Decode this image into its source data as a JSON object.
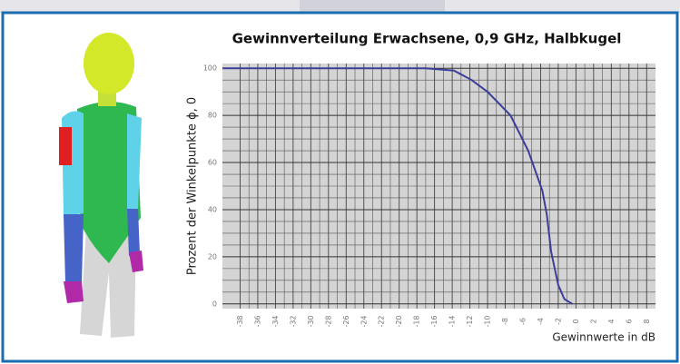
{
  "chart_data": {
    "type": "line",
    "title": "Gewinnverteilung Erwachsene, 0,9 GHz, Halbkugel",
    "xlabel": "Gewinnwerte in dB",
    "ylabel": "Prozent der Winkelpunkte ϕ, 0",
    "x": [
      -40,
      -30,
      -20,
      -17,
      -13.8,
      -11.8,
      -10,
      -7.4,
      -5.4,
      -3.8,
      -3.3,
      -2.8,
      -2,
      -1.3,
      -0.4
    ],
    "values": [
      100,
      100,
      100,
      100,
      99,
      95,
      90,
      80,
      65,
      48,
      38,
      22,
      8,
      2,
      0
    ],
    "color": "#3b3f9a",
    "xlim": [
      -40,
      9
    ],
    "ylim": [
      -2,
      102
    ],
    "xticks": [
      -38,
      -36,
      -34,
      -32,
      -30,
      -28,
      -26,
      -24,
      -22,
      -20,
      -18,
      -16,
      -14,
      -12,
      -10,
      -8,
      -6,
      -4,
      -2,
      0,
      2,
      4,
      6,
      8
    ],
    "yticks": [
      0,
      20,
      40,
      60,
      80,
      100
    ],
    "grid": true
  }
}
